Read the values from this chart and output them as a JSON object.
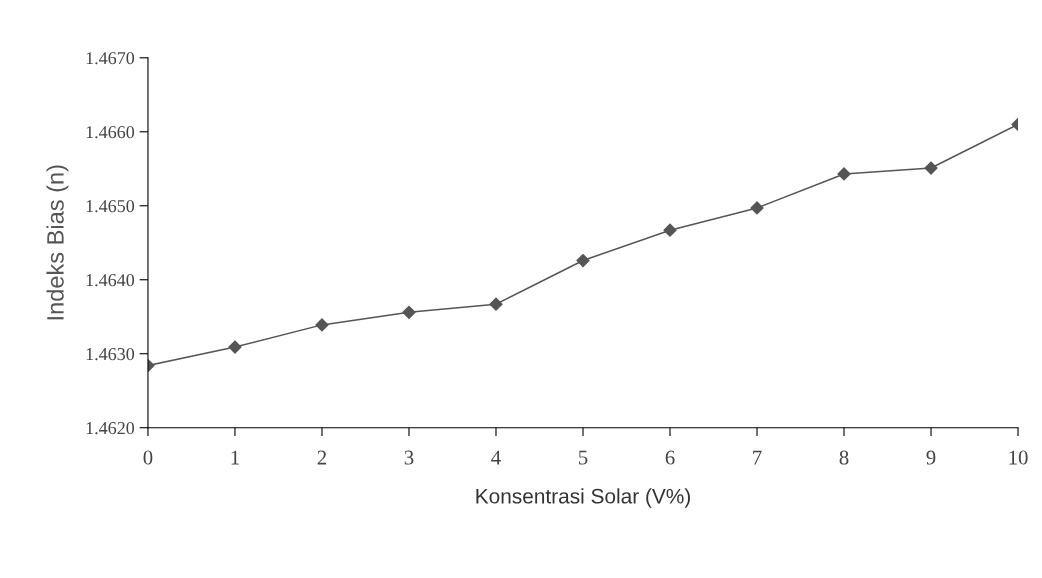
{
  "chart_data": {
    "type": "line",
    "xlabel": "Konsentrasi Solar (V%)",
    "ylabel": "Indeks Bias (n)",
    "x": [
      0,
      1,
      2,
      3,
      4,
      5,
      6,
      7,
      8,
      9,
      10
    ],
    "series": [
      {
        "color": "#555555",
        "values": [
          1.46284,
          1.46309,
          1.46339,
          1.46356,
          1.46367,
          1.46426,
          1.46467,
          1.46497,
          1.46543,
          1.46551,
          1.4661
        ]
      }
    ],
    "xlim": [
      0,
      10
    ],
    "xticks": [
      0,
      1,
      2,
      3,
      4,
      5,
      6,
      7,
      8,
      9,
      10
    ],
    "ylim": [
      1.462,
      1.467
    ],
    "yticks": [
      {
        "value": 1.462,
        "label": "1.4620"
      },
      {
        "value": 1.463,
        "label": "1.4630"
      },
      {
        "value": 1.464,
        "label": "1.4640"
      },
      {
        "value": 1.465,
        "label": "1.4650"
      },
      {
        "value": 1.466,
        "label": "1.4660"
      },
      {
        "value": 1.467,
        "label": "1.4670"
      }
    ],
    "marker": "diamond",
    "line_style": "solid",
    "grid": false,
    "legend": false
  }
}
